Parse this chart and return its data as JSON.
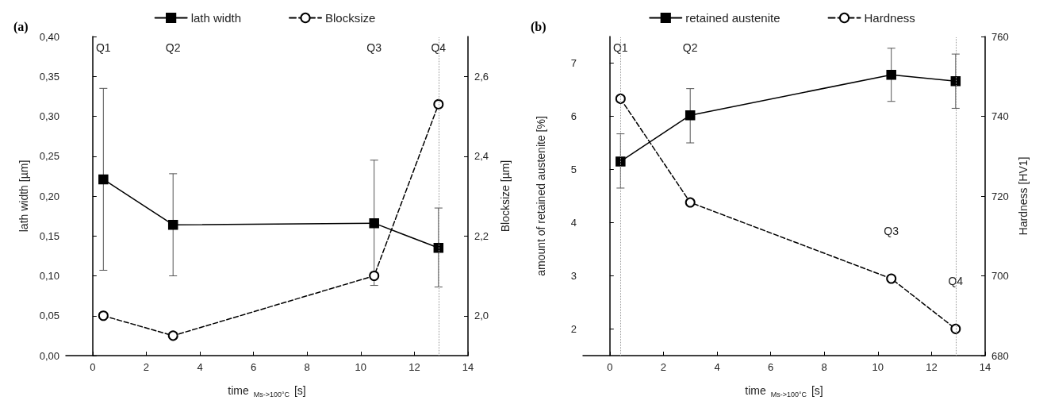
{
  "chart_data": [
    {
      "type": "line",
      "title": "(a)",
      "xlabel": "time $_{Ms->100°C}$ [s]",
      "ylabel": "lath width [µm]",
      "y2label": "Blocksize [µm]",
      "xlim": [
        -1,
        14
      ],
      "xticks": [
        0,
        2,
        4,
        6,
        8,
        10,
        12,
        14
      ],
      "ylim": [
        0,
        0.4
      ],
      "yticks": [
        {
          "value": 0,
          "label": "0,00"
        },
        {
          "value": 0.05,
          "label": "0,05"
        },
        {
          "value": 0.1,
          "label": "0,10"
        },
        {
          "value": 0.15,
          "label": "0,15"
        },
        {
          "value": 0.2,
          "label": "0,20"
        },
        {
          "value": 0.25,
          "label": "0,25"
        },
        {
          "value": 0.3,
          "label": "0,30"
        },
        {
          "value": 0.35,
          "label": "0,35"
        },
        {
          "value": 0.4,
          "label": "0,40"
        }
      ],
      "y2lim": [
        1.9,
        2.7
      ],
      "y2ticks": [
        {
          "value": 2.0,
          "label": "2,0"
        },
        {
          "value": 2.2,
          "label": "2,2"
        },
        {
          "value": 2.4,
          "label": "2,4"
        },
        {
          "value": 2.6,
          "label": "2,6"
        }
      ],
      "x": [
        0.4,
        3,
        10.5,
        12.9
      ],
      "series": [
        {
          "name": "lath width",
          "color": "#000000",
          "marker": "square",
          "line_style": "solid",
          "values": [
            0.221,
            0.164,
            0.166,
            0.135
          ],
          "errors": [
            [
              0.107,
              0.335
            ],
            [
              0.1,
              0.228
            ],
            [
              0.088,
              0.245
            ],
            [
              0.086,
              0.185
            ]
          ]
        },
        {
          "name": "Blocksize",
          "color": "#000000",
          "marker": "circle",
          "line_style": "dashed",
          "axis": "y2",
          "values": [
            2.0,
            1.95,
            2.1,
            2.53
          ]
        }
      ],
      "ref_lines": [
        {
          "axis": "x",
          "value": 12.9,
          "color": "#999999",
          "line_style": "dotted"
        }
      ],
      "annotations": [
        "Q1",
        "Q2",
        "Q3",
        "Q4"
      ],
      "legend": "top"
    },
    {
      "type": "line",
      "title": "(b)",
      "xlabel": "time $_{Ms->100°C}$ [s]",
      "ylabel": "amount of retained austenite [%]",
      "y2label": "Hardness [HV1]",
      "xlim": [
        -1,
        14
      ],
      "xticks": [
        0,
        2,
        4,
        6,
        8,
        10,
        12,
        14
      ],
      "ylim": [
        1.5,
        7.5
      ],
      "yticks": [
        2,
        3,
        4,
        5,
        6,
        7
      ],
      "y2lim": [
        680,
        760
      ],
      "y2ticks": [
        680,
        700,
        720,
        740,
        760
      ],
      "x": [
        0.4,
        3,
        10.5,
        12.9
      ],
      "series": [
        {
          "name": "retained austenite",
          "color": "#000000",
          "marker": "square",
          "line_style": "solid",
          "values": [
            5.15,
            6.02,
            6.78,
            6.66
          ],
          "errors": [
            [
              4.65,
              5.67
            ],
            [
              5.5,
              6.52
            ],
            [
              6.28,
              7.28
            ],
            [
              6.15,
              7.17
            ]
          ]
        },
        {
          "name": "Hardness",
          "color": "#000000",
          "marker": "circle",
          "line_style": "dashed",
          "axis": "y2",
          "values": [
            744.4,
            718.4,
            699.3,
            686.7
          ]
        }
      ],
      "ref_lines": [
        {
          "axis": "x",
          "value": 0.4,
          "color": "#999999",
          "line_style": "dotted"
        },
        {
          "axis": "x",
          "value": 12.9,
          "color": "#999999",
          "line_style": "dotted"
        }
      ],
      "annotations": [
        "Q1",
        "Q2",
        "Q3",
        "Q4"
      ],
      "legend": "top"
    }
  ]
}
